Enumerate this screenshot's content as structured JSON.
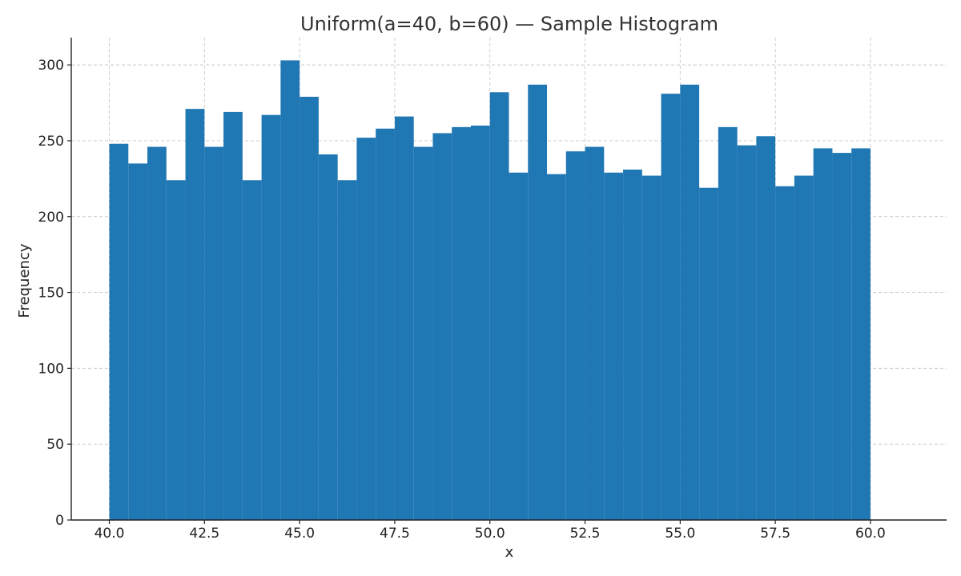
{
  "chart_data": {
    "type": "bar",
    "subtype": "histogram",
    "title": "Uniform(a=40, b=60) — Sample Histogram",
    "xlabel": "x",
    "ylabel": "Frequency",
    "xlim": [
      39,
      62
    ],
    "ylim": [
      0,
      318
    ],
    "x_ticks": [
      40.0,
      42.5,
      45.0,
      47.5,
      50.0,
      52.5,
      55.0,
      57.5,
      60.0
    ],
    "x_tick_labels": [
      "40.0",
      "42.5",
      "45.0",
      "47.5",
      "50.0",
      "52.5",
      "55.0",
      "57.5",
      "60.0"
    ],
    "y_ticks": [
      0,
      50,
      100,
      150,
      200,
      250,
      300
    ],
    "y_tick_labels": [
      "0",
      "50",
      "100",
      "150",
      "200",
      "250",
      "300"
    ],
    "grid": true,
    "bar_color": "#1f77b4",
    "bin_start": 40.0,
    "bin_width": 0.5,
    "values": [
      248,
      235,
      246,
      224,
      271,
      246,
      269,
      224,
      267,
      303,
      279,
      241,
      224,
      252,
      258,
      266,
      246,
      255,
      259,
      260,
      282,
      229,
      287,
      228,
      243,
      246,
      229,
      231,
      227,
      281,
      287,
      219,
      259,
      247,
      253,
      220,
      227,
      245,
      242,
      245
    ]
  }
}
